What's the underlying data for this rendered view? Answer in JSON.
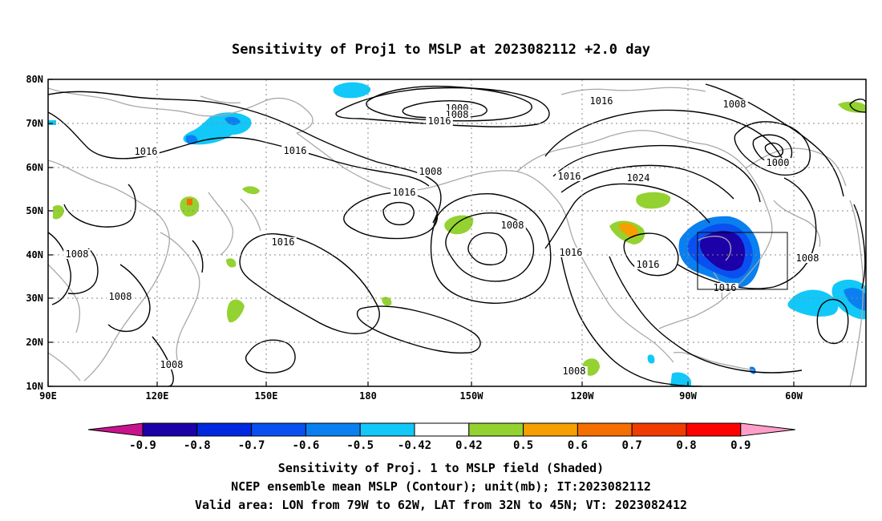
{
  "title": "Sensitivity of Proj1 to MSLP at 2023082112 +2.0 day",
  "lat_ticks": [
    "80N",
    "70N",
    "60N",
    "50N",
    "40N",
    "30N",
    "20N",
    "10N"
  ],
  "lon_ticks": [
    "90E",
    "120E",
    "150E",
    "180",
    "150W",
    "120W",
    "90W",
    "60W"
  ],
  "contour_labels": [
    {
      "text": "1000"
    },
    {
      "text": "1008"
    },
    {
      "text": "1016"
    },
    {
      "text": "1016"
    },
    {
      "text": "1008"
    },
    {
      "text": "1000"
    },
    {
      "text": "1016"
    },
    {
      "text": "1016"
    },
    {
      "text": "1008"
    },
    {
      "text": "1016"
    },
    {
      "text": "1024"
    },
    {
      "text": "1016"
    },
    {
      "text": "1016"
    },
    {
      "text": "1008"
    },
    {
      "text": "1016"
    },
    {
      "text": "1008"
    },
    {
      "text": "1008"
    },
    {
      "text": "1016"
    },
    {
      "text": "1016"
    },
    {
      "text": "1008"
    },
    {
      "text": "1008"
    },
    {
      "text": "1008"
    }
  ],
  "colorbar": {
    "labels": [
      "-0.9",
      "-0.8",
      "-0.7",
      "-0.6",
      "-0.5",
      "-0.42",
      "0.42",
      "0.5",
      "0.6",
      "0.7",
      "0.8",
      "0.9"
    ],
    "colors": [
      "#1c00a8",
      "#0028e0",
      "#0a50f0",
      "#0a80f0",
      "#12c8f8",
      "#ffffff",
      "#94d232",
      "#f5a000",
      "#f56e00",
      "#f03c00",
      "#ff0000"
    ],
    "low_end_color": "#c8148c",
    "high_end_color": "#ff9ec8"
  },
  "captions": [
    "Sensitivity of Proj. 1 to MSLP field (Shaded)",
    "NCEP ensemble mean MSLP (Contour); unit(mb); IT:2023082112",
    "Valid area: LON from 79W to 62W, LAT from 32N to 45N; VT: 2023082412"
  ]
}
